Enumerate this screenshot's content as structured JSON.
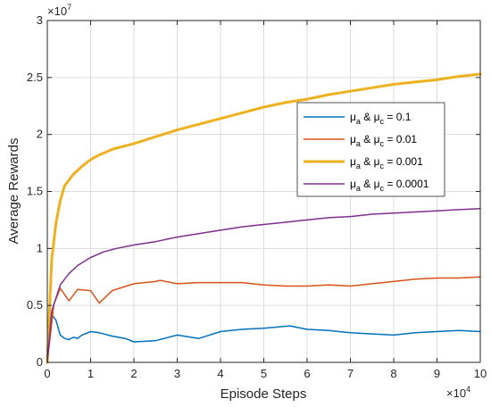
{
  "chart_data": {
    "type": "line",
    "xlabel": "Episode Steps",
    "ylabel": "Average Rewards",
    "x_multiplier": "×10^4",
    "y_multiplier": "×10^7",
    "x_multiplier_base": "×10",
    "x_multiplier_exp": "4",
    "y_multiplier_base": "×10",
    "y_multiplier_exp": "7",
    "xlim": [
      0,
      10
    ],
    "ylim": [
      0,
      3
    ],
    "xticks": [
      0,
      1,
      2,
      3,
      4,
      5,
      6,
      7,
      8,
      9,
      10
    ],
    "yticks": [
      0,
      0.5,
      1,
      1.5,
      2,
      2.5,
      3
    ],
    "xtick_labels": [
      "0",
      "1",
      "2",
      "3",
      "4",
      "5",
      "6",
      "7",
      "8",
      "9",
      "10"
    ],
    "ytick_labels": [
      "0",
      "0.5",
      "1",
      "1.5",
      "2",
      "2.5",
      "3"
    ],
    "grid": true,
    "legend_position": "top-right",
    "series": [
      {
        "name": "μa & μc = 0.1",
        "legend": {
          "mu": "μ",
          "sub1": "a",
          "amp": "&",
          "sub2": "c",
          "value": "= 0.1"
        },
        "color": "#0072BD",
        "line_width": 1.5,
        "x": [
          0,
          0.1,
          0.2,
          0.3,
          0.4,
          0.5,
          0.6,
          0.7,
          0.8,
          1.0,
          1.2,
          1.5,
          1.8,
          2.0,
          2.5,
          3.0,
          3.5,
          4.0,
          4.5,
          5.0,
          5.6,
          6.0,
          6.5,
          7.0,
          7.5,
          8.0,
          8.5,
          9.0,
          9.5,
          10.0
        ],
        "y": [
          0,
          0.42,
          0.37,
          0.24,
          0.21,
          0.2,
          0.22,
          0.21,
          0.24,
          0.27,
          0.26,
          0.23,
          0.21,
          0.18,
          0.19,
          0.24,
          0.21,
          0.27,
          0.29,
          0.3,
          0.32,
          0.29,
          0.28,
          0.26,
          0.25,
          0.24,
          0.26,
          0.27,
          0.28,
          0.27
        ]
      },
      {
        "name": "μa & μc = 0.01",
        "legend": {
          "mu": "μ",
          "sub1": "a",
          "amp": "&",
          "sub2": "c",
          "value": "= 0.01"
        },
        "color": "#D95319",
        "line_width": 1.5,
        "x": [
          0,
          0.15,
          0.3,
          0.5,
          0.7,
          1.0,
          1.2,
          1.5,
          2.0,
          2.5,
          2.6,
          3.0,
          3.5,
          4.0,
          4.5,
          5.0,
          5.5,
          6.0,
          6.5,
          7.0,
          7.5,
          8.0,
          8.5,
          9.0,
          9.5,
          10.0
        ],
        "y": [
          0,
          0.51,
          0.65,
          0.54,
          0.64,
          0.63,
          0.52,
          0.63,
          0.69,
          0.71,
          0.72,
          0.69,
          0.7,
          0.7,
          0.7,
          0.68,
          0.67,
          0.67,
          0.68,
          0.67,
          0.69,
          0.71,
          0.73,
          0.74,
          0.74,
          0.75
        ]
      },
      {
        "name": "μa & μc = 0.001",
        "legend": {
          "mu": "μ",
          "sub1": "a",
          "amp": "&",
          "sub2": "c",
          "value": "= 0.001"
        },
        "color": "#EDB120",
        "line_width": 3,
        "x": [
          0,
          0.1,
          0.2,
          0.3,
          0.4,
          0.6,
          0.8,
          1.0,
          1.2,
          1.5,
          2.0,
          2.5,
          3.0,
          3.5,
          4.0,
          4.5,
          5.0,
          5.5,
          6.0,
          6.5,
          7.0,
          7.5,
          8.0,
          8.5,
          9.0,
          9.5,
          10.0
        ],
        "y": [
          0,
          0.9,
          1.22,
          1.42,
          1.55,
          1.65,
          1.72,
          1.78,
          1.82,
          1.87,
          1.92,
          1.98,
          2.04,
          2.09,
          2.14,
          2.19,
          2.24,
          2.28,
          2.31,
          2.35,
          2.38,
          2.41,
          2.44,
          2.46,
          2.48,
          2.51,
          2.53
        ]
      },
      {
        "name": "μa & μc = 0.0001",
        "legend": {
          "mu": "μ",
          "sub1": "a",
          "amp": "&",
          "sub2": "c",
          "value": "= 0.0001"
        },
        "color": "#7E2F8E",
        "line_width": 1.5,
        "x": [
          0,
          0.1,
          0.3,
          0.5,
          0.7,
          1.0,
          1.3,
          1.6,
          2.0,
          2.5,
          3.0,
          3.5,
          4.0,
          4.5,
          5.0,
          5.5,
          6.0,
          6.5,
          7.0,
          7.5,
          8.0,
          8.5,
          9.0,
          9.5,
          10.0
        ],
        "y": [
          0,
          0.45,
          0.68,
          0.78,
          0.85,
          0.92,
          0.97,
          1.0,
          1.03,
          1.06,
          1.1,
          1.13,
          1.16,
          1.19,
          1.21,
          1.23,
          1.25,
          1.27,
          1.28,
          1.3,
          1.31,
          1.32,
          1.33,
          1.34,
          1.35
        ]
      }
    ]
  }
}
